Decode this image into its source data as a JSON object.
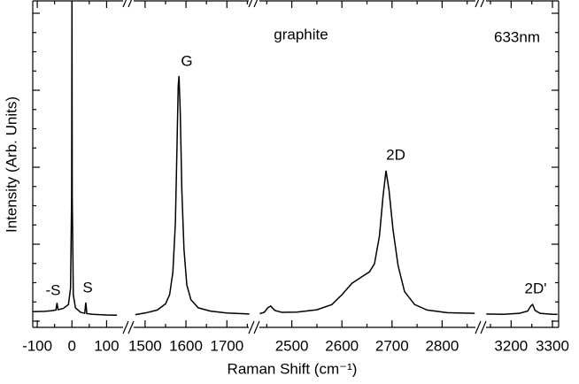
{
  "chart_data": {
    "type": "line",
    "xlabel": "Raman Shift (cm⁻¹)",
    "ylabel": "Intensity (Arb. Units)",
    "ylim": [
      0,
      100
    ],
    "color": "#000000",
    "annotations": [
      "graphite",
      "633nm",
      "G",
      "2D",
      "-S",
      "S",
      "2D'"
    ],
    "panels": [
      {
        "xlim": [
          -113,
          150
        ],
        "xticks": [
          -100,
          0,
          100
        ],
        "x": [
          -113,
          -80,
          -60,
          -46,
          -43,
          -40,
          -25,
          -10,
          -4,
          -1,
          0,
          1,
          4,
          10,
          25,
          37,
          40,
          43,
          60,
          100,
          130
        ],
        "values": [
          4.8,
          4.9,
          5.1,
          5.3,
          7.5,
          5.4,
          5.8,
          7,
          12,
          40,
          100,
          40,
          10,
          6,
          4.6,
          4.3,
          7.6,
          4.2,
          4,
          3.8,
          3.7
        ]
      },
      {
        "xlim": [
          1470,
          1760
        ],
        "xticks": [
          1500,
          1600,
          1700
        ],
        "x": [
          1476,
          1500,
          1530,
          1550,
          1560,
          1568,
          1574,
          1578,
          1581,
          1583,
          1586,
          1590,
          1595,
          1602,
          1612,
          1630,
          1660,
          1700,
          1755
        ],
        "values": [
          3.9,
          4.4,
          5.3,
          7.2,
          10,
          17,
          32,
          55,
          74,
          77,
          66,
          42,
          24,
          13,
          8.5,
          6,
          5,
          4.4,
          4.1
        ]
      },
      {
        "xlim": [
          2430,
          2870
        ],
        "xticks": [
          2500,
          2600,
          2700,
          2800
        ],
        "x": [
          2436,
          2445,
          2452,
          2458,
          2466,
          2480,
          2510,
          2550,
          2580,
          2600,
          2620,
          2640,
          2655,
          2665,
          2675,
          2682,
          2688,
          2694,
          2702,
          2712,
          2725,
          2745,
          2770,
          2810,
          2865
        ],
        "values": [
          4.2,
          4.6,
          6,
          6.5,
          5.2,
          4.6,
          4.7,
          5.4,
          7,
          10,
          13.5,
          15.5,
          17,
          19.5,
          28,
          40,
          48,
          42,
          30,
          19,
          11,
          7,
          5.3,
          4.5,
          4.3
        ]
      },
      {
        "xlim": [
          3135,
          3315
        ],
        "xticks": [
          3200,
          3300
        ],
        "x": [
          3140,
          3180,
          3220,
          3240,
          3248,
          3252,
          3258,
          3270,
          3300,
          3312
        ],
        "values": [
          4.1,
          4,
          4.3,
          5,
          6.6,
          7,
          5.2,
          4.3,
          4,
          4
        ]
      }
    ]
  }
}
